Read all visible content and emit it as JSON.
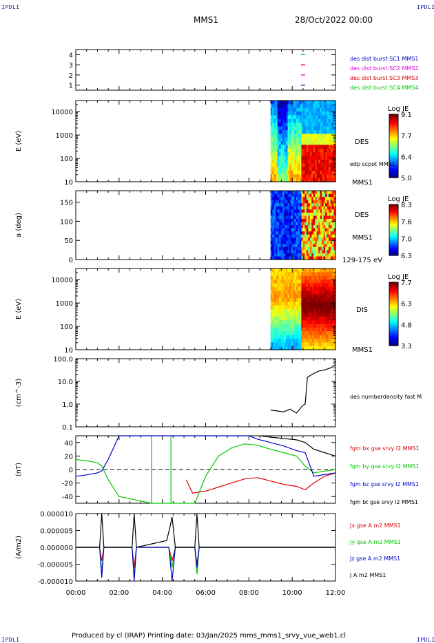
{
  "header": {
    "corner_label": "IPDLI",
    "spacecraft": "MMS1",
    "date": "28/Oct/2022 00:00"
  },
  "footer": {
    "text": "Produced by cl (IRAP)   Printing date: 03/Jan/2025   mms_mms1_srvy_vue_web1.cl"
  },
  "colors": {
    "blue": "#0000c8",
    "magenta": "#e000e0",
    "red": "#e00000",
    "green": "#00c800",
    "black": "#000000"
  },
  "chart_data": [
    {
      "type": "scatter",
      "panel": "burst-availability",
      "y_ticks": [
        "4",
        "3",
        "2",
        "1"
      ],
      "ylim": [
        0.5,
        4.5
      ],
      "series": [
        {
          "name": "des dist burst SC1 MMS1",
          "color": "blue",
          "y": 1,
          "x": [
            10.4,
            10.6
          ]
        },
        {
          "name": "des dist burst SC2 MMS2",
          "color": "magenta",
          "y": 2,
          "x": [
            10.4,
            10.6
          ]
        },
        {
          "name": "des dist burst SC3 MMS3",
          "color": "red",
          "y": 3,
          "x": [
            10.4,
            10.6
          ]
        },
        {
          "name": "des dist burst SC4 MMS4",
          "color": "green",
          "y": 4,
          "x": [
            10.4,
            10.6
          ]
        }
      ]
    },
    {
      "type": "heatmap",
      "panel": "des-energy-spectrogram",
      "ylabel": "E (eV)",
      "y_ticks": [
        "10000",
        "1000",
        "100",
        "10"
      ],
      "ylog": true,
      "ylim": [
        10,
        30000
      ],
      "colorbar": {
        "title": "Log JE",
        "ticks": [
          "9.1",
          "7.7",
          "6.4",
          "5.0"
        ],
        "range": [
          5.0,
          9.1
        ]
      },
      "labels": [
        "DES",
        "edp scpot MMS1",
        "MMS1"
      ],
      "data_start_hour": 9.0
    },
    {
      "type": "heatmap",
      "panel": "des-pitch-angle",
      "ylabel": "a (deg)",
      "y_ticks": [
        "150",
        "100",
        "50",
        "0"
      ],
      "ylim": [
        0,
        180
      ],
      "colorbar": {
        "title": "Log JE",
        "ticks": [
          "8.3",
          "7.6",
          "7.0",
          "6.3"
        ],
        "range": [
          6.3,
          8.3
        ]
      },
      "labels": [
        "DES",
        "MMS1",
        "129-175 eV"
      ],
      "data_start_hour": 9.0
    },
    {
      "type": "heatmap",
      "panel": "dis-energy-spectrogram",
      "ylabel": "E (eV)",
      "y_ticks": [
        "10000",
        "1000",
        "100",
        "10"
      ],
      "ylog": true,
      "ylim": [
        10,
        30000
      ],
      "colorbar": {
        "title": "Log JE",
        "ticks": [
          "7.7",
          "6.3",
          "4.8",
          "3.3"
        ],
        "range": [
          3.3,
          7.7
        ]
      },
      "labels": [
        "DIS",
        "MMS1"
      ],
      "data_start_hour": 9.0
    },
    {
      "type": "line",
      "panel": "number-density",
      "ylabel": "(cm^-3)",
      "y_ticks": [
        "100.0",
        "10.0",
        "1.0",
        "0.1"
      ],
      "ylog": true,
      "ylim": [
        0.1,
        100
      ],
      "series": [
        {
          "name": "des numberdensity fast M",
          "color": "black",
          "x": [
            9.0,
            9.3,
            9.6,
            9.9,
            10.2,
            10.4,
            10.5,
            10.6,
            10.7,
            10.9,
            11.2,
            11.5,
            11.8,
            12.0
          ],
          "y": [
            0.55,
            0.5,
            0.45,
            0.6,
            0.4,
            0.7,
            0.9,
            1.0,
            15,
            20,
            28,
            32,
            40,
            55
          ]
        }
      ]
    },
    {
      "type": "line",
      "panel": "magnetic-field",
      "ylabel": "(nT)",
      "y_ticks": [
        "40",
        "20",
        "0",
        "-20",
        "-40"
      ],
      "ylim": [
        -50,
        50
      ],
      "series": [
        {
          "name": "fgm bx gse srvy l2 MMS1",
          "color": "red",
          "x": [
            5.1,
            5.4,
            6.0,
            6.6,
            7.2,
            7.8,
            8.4,
            9.0,
            9.6,
            10.2,
            10.6,
            11.0,
            11.5,
            12.0
          ],
          "y": [
            -15,
            -35,
            -32,
            -26,
            -20,
            -14,
            -12,
            -17,
            -22,
            -25,
            -30,
            -20,
            -10,
            -5
          ]
        },
        {
          "name": "fgm by gse srvy l2 MMS1",
          "color": "green",
          "x": [
            0.0,
            0.5,
            1.0,
            1.2,
            1.5,
            2.0,
            3.5,
            3.5,
            3.5,
            4.4,
            4.4,
            4.4,
            5.5,
            6.0,
            6.6,
            7.2,
            7.8,
            8.4,
            9.0,
            9.6,
            10.2,
            10.6,
            11.0,
            12.0
          ],
          "y": [
            15,
            13,
            10,
            5,
            -15,
            -40,
            -50,
            50,
            -50,
            -50,
            50,
            -50,
            -50,
            -10,
            20,
            32,
            38,
            36,
            30,
            25,
            20,
            5,
            -5,
            0
          ]
        },
        {
          "name": "fgm bz gse srvy l2 MMS1",
          "color": "blue",
          "x": [
            0.0,
            0.5,
            1.0,
            1.2,
            1.5,
            2.0,
            8.0,
            8.4,
            9.0,
            9.6,
            10.2,
            10.6,
            11.0,
            12.0
          ],
          "y": [
            -10,
            -8,
            -5,
            -2,
            15,
            50,
            50,
            45,
            40,
            35,
            28,
            25,
            -10,
            -5
          ]
        },
        {
          "name": "fgm bt gse srvy l2 MMS1",
          "color": "black",
          "x": [
            8.5,
            9.0,
            9.6,
            10.2,
            10.6,
            11.0,
            11.5,
            12.0
          ],
          "y": [
            50,
            48,
            46,
            44,
            40,
            30,
            25,
            20
          ]
        }
      ]
    },
    {
      "type": "line",
      "panel": "current-density",
      "ylabel": "(A/m2)",
      "y_ticks": [
        "0.000010",
        "0.000005",
        "0.000000",
        "-0.000005",
        "-0.000010"
      ],
      "ylim": [
        -1e-05,
        1e-05
      ],
      "x_ticks": [
        "00:00",
        "02:00",
        "04:00",
        "06:00",
        "08:00",
        "10:00",
        "12:00"
      ],
      "xlim": [
        0,
        12
      ],
      "series": [
        {
          "name": "Jx gse A m2 MMS1",
          "color": "red",
          "x": [
            0,
            1.1,
            1.2,
            1.3,
            2.6,
            2.7,
            2.8,
            4.3,
            4.45,
            4.6,
            5.5,
            5.6,
            5.7,
            12
          ],
          "y": [
            0,
            0,
            -4e-06,
            0,
            0,
            -6e-06,
            0,
            0,
            -4e-06,
            0,
            0,
            -5e-06,
            0,
            0
          ]
        },
        {
          "name": "Jy gse A m2 MMS1",
          "color": "green",
          "x": [
            0,
            1.1,
            1.2,
            1.3,
            2.6,
            2.7,
            2.8,
            4.3,
            4.45,
            4.6,
            5.5,
            5.6,
            5.7,
            12
          ],
          "y": [
            0,
            0,
            -7e-06,
            0,
            0,
            -9e-06,
            0,
            0,
            -6e-06,
            0,
            0,
            -8e-06,
            0,
            0
          ]
        },
        {
          "name": "Jz gse A m2 MMS1",
          "color": "blue",
          "x": [
            0,
            1.1,
            1.2,
            1.3,
            2.6,
            2.7,
            2.8,
            4.3,
            4.45,
            4.6,
            5.5,
            5.6,
            5.7,
            12
          ],
          "y": [
            0,
            0,
            -9e-06,
            0,
            0,
            -1e-05,
            0,
            0,
            -1e-05,
            0,
            0,
            -6e-06,
            0,
            0
          ]
        },
        {
          "name": "J A m2 MMS1",
          "color": "black",
          "x": [
            0,
            1.1,
            1.2,
            1.3,
            2.6,
            2.7,
            2.8,
            4.2,
            4.35,
            4.45,
            4.6,
            5.5,
            5.6,
            5.7,
            12
          ],
          "y": [
            0,
            0,
            1e-05,
            0,
            0,
            1e-05,
            0,
            2e-06,
            6e-06,
            9e-06,
            0,
            0,
            1e-05,
            0,
            0
          ]
        }
      ]
    }
  ]
}
